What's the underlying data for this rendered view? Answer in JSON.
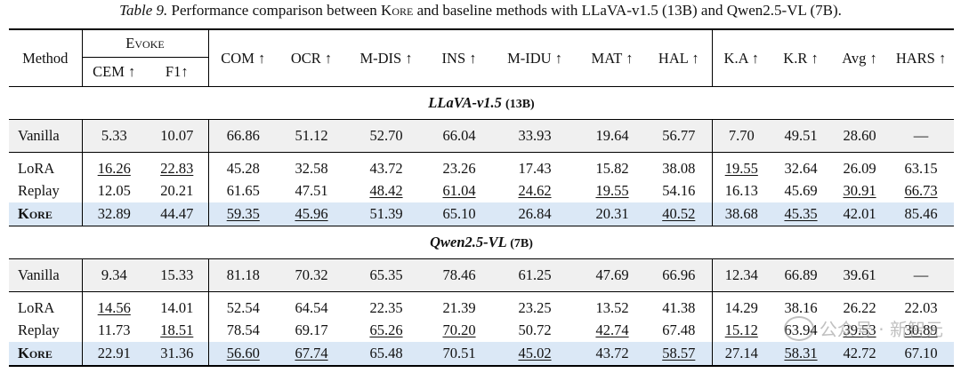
{
  "caption": {
    "label": "Table 9.",
    "text_before": " Performance comparison between ",
    "kore": "Kore",
    "text_after": " and baseline methods with LLaVA-v1.5 (13B) and Qwen2.5-VL (7B)."
  },
  "headers": {
    "method": "Method",
    "evoke": "Evoke",
    "cem": "CEM ↑",
    "f1": "F1↑",
    "com": "COM ↑",
    "ocr": "OCR ↑",
    "mdis": "M-DIS ↑",
    "ins": "INS ↑",
    "midu": "M-IDU ↑",
    "mat": "MAT ↑",
    "hal": "HAL ↑",
    "ka": "K.A ↑",
    "kr": "K.R ↑",
    "avg": "Avg ↑",
    "hars": "HARS ↑"
  },
  "sections": [
    {
      "model": "LLaVA-v1.5",
      "size": "(13B)",
      "rows": [
        {
          "method": "Vanilla",
          "values": [
            "5.33",
            "10.07",
            "66.86",
            "51.12",
            "52.70",
            "66.04",
            "33.93",
            "19.64",
            "56.77",
            "7.70",
            "49.51",
            "28.60",
            "—"
          ]
        },
        {
          "method": "LoRA",
          "values": [
            "16.26",
            "22.83",
            "45.28",
            "32.58",
            "43.72",
            "23.26",
            "17.43",
            "15.82",
            "38.08",
            "19.55",
            "32.64",
            "26.09",
            "63.15"
          ]
        },
        {
          "method": "Replay",
          "values": [
            "12.05",
            "20.21",
            "61.65",
            "47.51",
            "48.42",
            "61.04",
            "24.62",
            "19.55",
            "54.16",
            "16.13",
            "45.69",
            "30.91",
            "66.73"
          ]
        },
        {
          "method": "Kore",
          "values": [
            "32.89",
            "44.47",
            "59.35",
            "45.96",
            "51.39",
            "65.10",
            "26.84",
            "20.31",
            "40.52",
            "38.68",
            "45.35",
            "42.01",
            "85.46"
          ]
        }
      ]
    },
    {
      "model": "Qwen2.5-VL",
      "size": "(7B)",
      "rows": [
        {
          "method": "Vanilla",
          "values": [
            "9.34",
            "15.33",
            "81.18",
            "70.32",
            "65.35",
            "78.46",
            "61.25",
            "47.69",
            "66.96",
            "12.34",
            "66.89",
            "39.61",
            "—"
          ]
        },
        {
          "method": "LoRA",
          "values": [
            "14.56",
            "14.01",
            "52.54",
            "64.54",
            "22.35",
            "21.39",
            "23.25",
            "13.52",
            "41.38",
            "14.29",
            "38.16",
            "26.22",
            "22.03"
          ]
        },
        {
          "method": "Replay",
          "values": [
            "11.73",
            "18.51",
            "78.54",
            "69.17",
            "65.26",
            "70.20",
            "50.72",
            "42.74",
            "67.48",
            "15.12",
            "63.94",
            "39.53",
            "30.89"
          ]
        },
        {
          "method": "Kore",
          "values": [
            "22.91",
            "31.36",
            "56.60",
            "67.74",
            "65.48",
            "70.51",
            "45.02",
            "43.72",
            "58.57",
            "27.14",
            "58.31",
            "42.72",
            "67.10"
          ]
        }
      ]
    }
  ],
  "watermark": "公众号 · 新智元"
}
